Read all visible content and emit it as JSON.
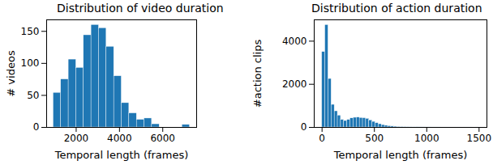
{
  "chart_data": [
    {
      "type": "histogram",
      "title": "Distribution of video duration",
      "x_label": "Temporal length (frames)",
      "y_label": "# videos",
      "bins": [
        950,
        1300,
        1650,
        2000,
        2350,
        2700,
        3050,
        3400,
        3750,
        4100,
        4450,
        4800,
        5150,
        5500,
        5850,
        6200,
        6550,
        6900,
        7250
      ],
      "counts": [
        54,
        75,
        106,
        93,
        144,
        160,
        155,
        126,
        80,
        38,
        22,
        12,
        14,
        5,
        0,
        0,
        0,
        4
      ],
      "color": "#1f77b4",
      "xlim": [
        635,
        7565
      ],
      "xticks": [
        2000,
        4000,
        6000
      ],
      "ylim": [
        0,
        168
      ],
      "yticks": [
        0,
        50,
        100,
        150
      ]
    },
    {
      "type": "histogram",
      "title": "Distribution of action duration",
      "x_label": "Temporal length (frames)",
      "y_label": "#action clips",
      "bins": [
        0,
        30,
        60,
        90,
        120,
        150,
        180,
        210,
        240,
        270,
        300,
        330,
        360,
        390,
        420,
        450,
        480,
        510,
        540,
        570,
        600,
        630,
        660,
        690,
        720,
        750,
        780,
        810,
        840,
        870,
        900,
        930,
        960,
        990,
        1020,
        1050,
        1080,
        1110,
        1140,
        1170,
        1200,
        1230,
        1260,
        1290,
        1320,
        1350,
        1380,
        1410,
        1440,
        1470,
        1500
      ],
      "counts": [
        3500,
        4750,
        2250,
        1050,
        750,
        550,
        350,
        300,
        350,
        420,
        450,
        460,
        440,
        430,
        400,
        330,
        260,
        200,
        150,
        110,
        80,
        60,
        45,
        35,
        25,
        20,
        15,
        12,
        10,
        8,
        6,
        5,
        4,
        3,
        3,
        2,
        2,
        2,
        1,
        1,
        1,
        1,
        1,
        1,
        1,
        1,
        1,
        1,
        0,
        1
      ],
      "color": "#1f77b4",
      "xlim": [
        -75,
        1575
      ],
      "xticks": [
        0,
        500,
        1000,
        1500
      ],
      "ylim": [
        0,
        4990
      ],
      "yticks": [
        0,
        2000,
        4000
      ]
    }
  ]
}
